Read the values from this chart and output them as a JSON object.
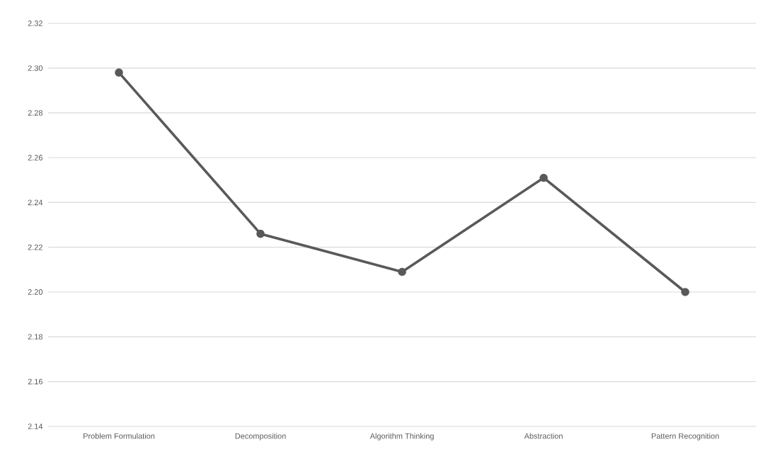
{
  "chart_data": {
    "type": "line",
    "categories": [
      "Problem Formulation",
      "Decomposition",
      "Algorithm Thinking",
      "Abstraction",
      "Pattern Recognition"
    ],
    "values": [
      2.298,
      2.226,
      2.209,
      2.251,
      2.2
    ],
    "color": "#595959",
    "marker": "circle",
    "grid": "y",
    "ylim": [
      2.14,
      2.32
    ],
    "yticks": [
      {
        "value": 2.14,
        "label": "2.14"
      },
      {
        "value": 2.16,
        "label": "2.16"
      },
      {
        "value": 2.18,
        "label": "2.18"
      },
      {
        "value": 2.2,
        "label": "2.20"
      },
      {
        "value": 2.22,
        "label": "2.22"
      },
      {
        "value": 2.24,
        "label": "2.24"
      },
      {
        "value": 2.26,
        "label": "2.26"
      },
      {
        "value": 2.28,
        "label": "2.28"
      },
      {
        "value": 2.3,
        "label": "2.30"
      },
      {
        "value": 2.32,
        "label": "2.32"
      }
    ]
  }
}
